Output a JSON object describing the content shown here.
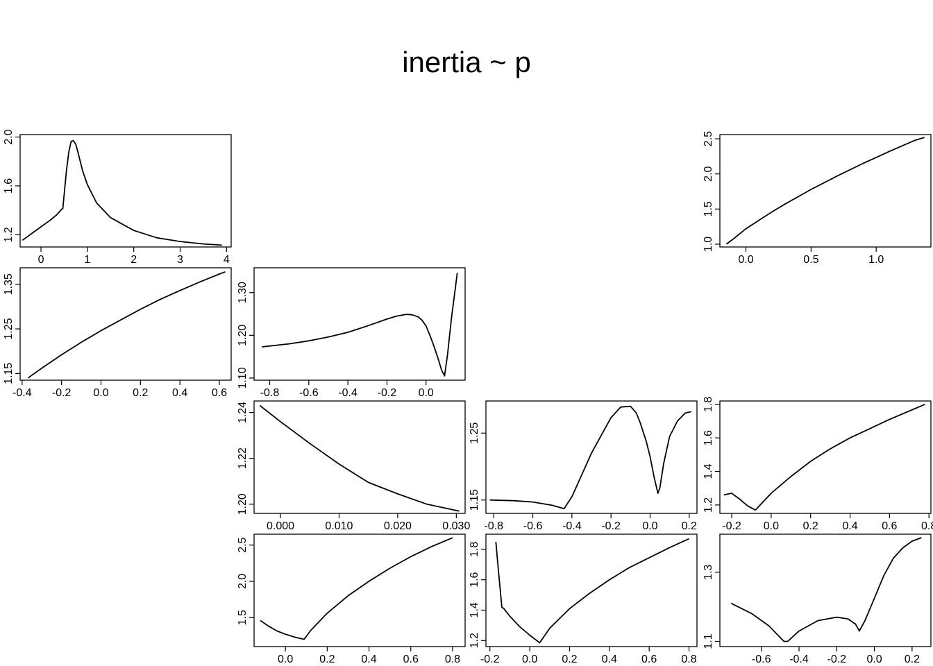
{
  "title": "inertia ~ p",
  "chart_data": [
    {
      "type": "line",
      "cell": [
        1,
        1
      ],
      "xticks": [
        "0",
        "1",
        "2",
        "3",
        "4"
      ],
      "yticks": [
        "1.2",
        "1.6",
        "2.0"
      ],
      "xlim": [
        -0.45,
        4.1
      ],
      "ylim": [
        1.1,
        2.02
      ],
      "x": [
        -0.4,
        -0.2,
        0.0,
        0.2,
        0.33,
        0.45,
        0.47,
        0.55,
        0.6,
        0.65,
        0.7,
        0.75,
        0.8,
        0.9,
        1.0,
        1.2,
        1.5,
        2.0,
        2.5,
        3.0,
        3.5,
        3.9
      ],
      "y": [
        1.155,
        1.21,
        1.265,
        1.32,
        1.36,
        1.41,
        1.415,
        1.73,
        1.88,
        1.965,
        1.97,
        1.94,
        1.87,
        1.72,
        1.61,
        1.46,
        1.34,
        1.235,
        1.175,
        1.145,
        1.125,
        1.115
      ]
    },
    {
      "type": "line",
      "cell": [
        1,
        4
      ],
      "xticks": [
        "0.0",
        "0.5",
        "1.0"
      ],
      "yticks": [
        "1.0",
        "1.5",
        "2.0",
        "2.5"
      ],
      "xlim": [
        -0.2,
        1.42
      ],
      "ylim": [
        0.96,
        2.56
      ],
      "x": [
        -0.15,
        -0.1,
        0.0,
        0.1,
        0.2,
        0.3,
        0.4,
        0.5,
        0.6,
        0.7,
        0.8,
        0.9,
        1.0,
        1.1,
        1.2,
        1.3,
        1.37
      ],
      "y": [
        1.0,
        1.07,
        1.22,
        1.34,
        1.46,
        1.57,
        1.675,
        1.78,
        1.875,
        1.97,
        2.06,
        2.15,
        2.235,
        2.32,
        2.4,
        2.48,
        2.52
      ]
    },
    {
      "type": "line",
      "cell": [
        2,
        1
      ],
      "xticks": [
        "-0.4",
        "-0.2",
        "0.0",
        "0.2",
        "0.4",
        "0.6"
      ],
      "yticks": [
        "1.15",
        "1.25",
        "1.35"
      ],
      "xlim": [
        -0.41,
        0.66
      ],
      "ylim": [
        1.135,
        1.387
      ],
      "x": [
        -0.37,
        -0.3,
        -0.2,
        -0.1,
        0.0,
        0.1,
        0.2,
        0.3,
        0.4,
        0.5,
        0.6,
        0.63
      ],
      "y": [
        1.14,
        1.162,
        1.192,
        1.22,
        1.246,
        1.27,
        1.294,
        1.316,
        1.336,
        1.355,
        1.373,
        1.378
      ]
    },
    {
      "type": "line",
      "cell": [
        2,
        2
      ],
      "xticks": [
        "-0.8",
        "-0.6",
        "-0.4",
        "-0.2",
        "0.0"
      ],
      "yticks": [
        "1.10",
        "1.20",
        "1.30"
      ],
      "xlim": [
        -0.88,
        0.2
      ],
      "ylim": [
        1.095,
        1.358
      ],
      "x": [
        -0.84,
        -0.7,
        -0.6,
        -0.5,
        -0.4,
        -0.3,
        -0.2,
        -0.15,
        -0.1,
        -0.07,
        -0.04,
        -0.02,
        0.0,
        0.02,
        0.04,
        0.06,
        0.08,
        0.095,
        0.11,
        0.13,
        0.15,
        0.16
      ],
      "y": [
        1.173,
        1.18,
        1.187,
        1.196,
        1.207,
        1.222,
        1.238,
        1.245,
        1.249,
        1.248,
        1.243,
        1.235,
        1.222,
        1.2,
        1.175,
        1.148,
        1.118,
        1.105,
        1.155,
        1.24,
        1.31,
        1.346
      ]
    },
    {
      "type": "line",
      "cell": [
        3,
        2
      ],
      "xticks": [
        "0.000",
        "0.010",
        "0.020",
        "0.030"
      ],
      "yticks": [
        "1.20",
        "1.22",
        "1.24"
      ],
      "xlim": [
        -0.0045,
        0.0315
      ],
      "ylim": [
        1.196,
        1.245
      ],
      "x": [
        -0.0035,
        0.0,
        0.005,
        0.01,
        0.015,
        0.02,
        0.025,
        0.0305
      ],
      "y": [
        1.243,
        1.236,
        1.2265,
        1.2175,
        1.2095,
        1.2045,
        1.2,
        1.197
      ]
    },
    {
      "type": "line",
      "cell": [
        3,
        3
      ],
      "xticks": [
        "-0.8",
        "-0.6",
        "-0.4",
        "-0.2",
        "0.0",
        "0.2"
      ],
      "yticks": [
        "1.15",
        "1.25"
      ],
      "xlim": [
        -0.84,
        0.24
      ],
      "ylim": [
        1.13,
        1.298
      ],
      "x": [
        -0.82,
        -0.7,
        -0.6,
        -0.5,
        -0.44,
        -0.4,
        -0.3,
        -0.2,
        -0.15,
        -0.1,
        -0.07,
        -0.05,
        -0.02,
        0.0,
        0.02,
        0.04,
        0.05,
        0.07,
        0.1,
        0.14,
        0.18,
        0.21
      ],
      "y": [
        1.15,
        1.149,
        1.147,
        1.142,
        1.137,
        1.155,
        1.22,
        1.273,
        1.289,
        1.29,
        1.28,
        1.265,
        1.238,
        1.215,
        1.185,
        1.16,
        1.168,
        1.205,
        1.245,
        1.268,
        1.28,
        1.282
      ]
    },
    {
      "type": "line",
      "cell": [
        3,
        4
      ],
      "xticks": [
        "-0.2",
        "0.0",
        "0.2",
        "0.4",
        "0.6",
        "0.8"
      ],
      "yticks": [
        "1.2",
        "1.4",
        "1.6",
        "1.8"
      ],
      "xlim": [
        -0.26,
        0.81
      ],
      "ylim": [
        1.15,
        1.82
      ],
      "x": [
        -0.24,
        -0.2,
        -0.16,
        -0.12,
        -0.08,
        -0.04,
        0.0,
        0.1,
        0.2,
        0.3,
        0.4,
        0.5,
        0.6,
        0.7,
        0.78
      ],
      "y": [
        1.26,
        1.27,
        1.235,
        1.195,
        1.17,
        1.22,
        1.27,
        1.37,
        1.46,
        1.535,
        1.6,
        1.655,
        1.71,
        1.76,
        1.8
      ]
    },
    {
      "type": "line",
      "cell": [
        4,
        2
      ],
      "xticks": [
        "0.0",
        "0.2",
        "0.4",
        "0.6",
        "0.8"
      ],
      "yticks": [
        "1.5",
        "2.0",
        "2.5"
      ],
      "xlim": [
        -0.15,
        0.86
      ],
      "ylim": [
        1.1,
        2.65
      ],
      "x": [
        -0.12,
        -0.08,
        -0.04,
        0.0,
        0.05,
        0.09,
        0.12,
        0.2,
        0.3,
        0.4,
        0.5,
        0.6,
        0.7,
        0.8
      ],
      "y": [
        1.46,
        1.38,
        1.315,
        1.27,
        1.225,
        1.2,
        1.32,
        1.56,
        1.8,
        2.0,
        2.18,
        2.34,
        2.48,
        2.6
      ]
    },
    {
      "type": "line",
      "cell": [
        4,
        3
      ],
      "xticks": [
        "-0.2",
        "0.0",
        "0.2",
        "0.4",
        "0.6",
        "0.8"
      ],
      "yticks": [
        "1.2",
        "1.4",
        "1.6",
        "1.8"
      ],
      "xlim": [
        -0.22,
        0.84
      ],
      "ylim": [
        1.16,
        1.9
      ],
      "x": [
        -0.17,
        -0.16,
        -0.14,
        -0.13,
        -0.1,
        -0.05,
        0.0,
        0.05,
        0.1,
        0.2,
        0.3,
        0.4,
        0.5,
        0.6,
        0.7,
        0.8
      ],
      "y": [
        1.85,
        1.7,
        1.42,
        1.41,
        1.36,
        1.29,
        1.235,
        1.185,
        1.28,
        1.41,
        1.51,
        1.6,
        1.68,
        1.745,
        1.81,
        1.87
      ]
    },
    {
      "type": "line",
      "cell": [
        4,
        4
      ],
      "xticks": [
        "-0.6",
        "-0.4",
        "-0.2",
        "0.0",
        "0.2"
      ],
      "yticks": [
        "1.1",
        "1.3"
      ],
      "xlim": [
        -0.82,
        0.3
      ],
      "ylim": [
        1.085,
        1.41
      ],
      "x": [
        -0.76,
        -0.65,
        -0.56,
        -0.48,
        -0.46,
        -0.4,
        -0.3,
        -0.2,
        -0.14,
        -0.1,
        -0.08,
        -0.05,
        0.0,
        0.05,
        0.1,
        0.15,
        0.2,
        0.25
      ],
      "y": [
        1.21,
        1.18,
        1.145,
        1.1,
        1.1,
        1.13,
        1.16,
        1.17,
        1.165,
        1.15,
        1.13,
        1.16,
        1.225,
        1.29,
        1.34,
        1.37,
        1.39,
        1.4
      ]
    }
  ]
}
